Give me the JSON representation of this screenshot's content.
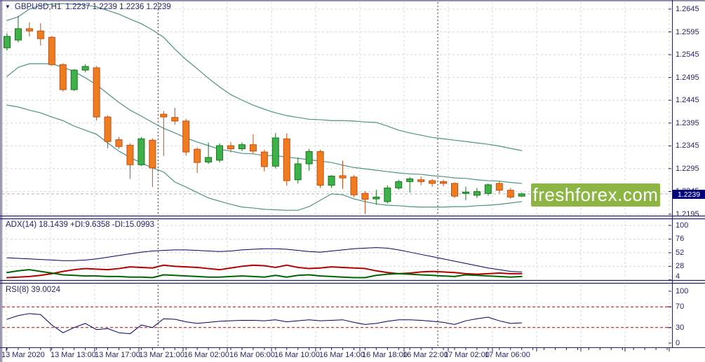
{
  "window": {
    "title": "GBPUSD,H1 chart"
  },
  "header": {
    "symbol_period": "GBPUSD,H1",
    "quotes": "1.2237 1.2239 1.2236 1.2239"
  },
  "logo": {
    "text": "freshforex.com",
    "bg": "#8cb544"
  },
  "price_axis": {
    "labels": [
      "1.2645",
      "1.2595",
      "1.2545",
      "1.2495",
      "1.2445",
      "1.2395",
      "1.2345",
      "1.2295",
      "1.2245",
      "1.2195"
    ],
    "current_price": "1.2239"
  },
  "adx_panel": {
    "label": "ADX(14) 18.1439 +DI:9.6358 -DI:15.0993",
    "scale_labels": [
      "100",
      "76",
      "52",
      "28",
      "4"
    ]
  },
  "rsi_panel": {
    "label": "RSI(8) 39.0024",
    "scale_labels": [
      "100",
      "70",
      "30",
      "0"
    ]
  },
  "time_axis": {
    "labels": [
      "13 Mar 2020",
      "13 Mar 13:00",
      "13 Mar 17:00",
      "13 Mar 21:00",
      "16 Mar 02:00",
      "16 Mar 06:00",
      "16 Mar 10:00",
      "16 Mar 14:00",
      "16 Mar 18:00",
      "16 Mar 22:00",
      "17 Mar 02:00",
      "17 Mar 06:00"
    ]
  },
  "colors": {
    "bull_fill": "#3fb04a",
    "bull_border": "#117a18",
    "bear_fill": "#ef7d1f",
    "bear_border": "#c84b10",
    "bollinger": "#4e9287",
    "adx_main": "#000066",
    "adx_plus_di": "#006400",
    "adx_minus_di": "#b30000",
    "rsi_line": "#000066",
    "rsi_level": "#c00000",
    "grid": "#d8d8d8",
    "separator": "#333333",
    "frame": "#20205e",
    "text": "#26266a",
    "price_line": "#b3b3b3",
    "badge_bg": "#00007d",
    "logo_bg": "#8cb544"
  },
  "chart_data": {
    "type": "candlestick",
    "symbol": "GBPUSD",
    "timeframe": "H1",
    "title": "GBPUSD,H1",
    "price_axis_range": {
      "top": 1.2645,
      "bottom": 1.2195,
      "grid_step": 0.005
    },
    "current_price": 1.2239,
    "candles_columns": [
      "open",
      "high",
      "low",
      "close"
    ],
    "candles": [
      [
        1.256,
        1.2592,
        1.2554,
        1.2585
      ],
      [
        1.2577,
        1.263,
        1.2572,
        1.2602
      ],
      [
        1.2602,
        1.2616,
        1.2585,
        1.2597
      ],
      [
        1.2597,
        1.2614,
        1.2565,
        1.258
      ],
      [
        1.2583,
        1.2586,
        1.252,
        1.2523
      ],
      [
        1.2523,
        1.2526,
        1.2464,
        1.2468
      ],
      [
        1.2468,
        1.2513,
        1.2465,
        1.2511
      ],
      [
        1.2511,
        1.2524,
        1.2506,
        1.2519
      ],
      [
        1.2516,
        1.252,
        1.24,
        1.2408
      ],
      [
        1.2408,
        1.2411,
        1.2339,
        1.2354
      ],
      [
        1.2358,
        1.2364,
        1.2338,
        1.2343
      ],
      [
        1.2346,
        1.235,
        1.2272,
        1.2303
      ],
      [
        1.2303,
        1.2364,
        1.23,
        1.236
      ],
      [
        1.2357,
        1.2361,
        1.2254,
        1.2296
      ],
      [
        1.2414,
        1.2421,
        1.2322,
        1.2408
      ],
      [
        1.2407,
        1.2428,
        1.2391,
        1.2399
      ],
      [
        1.2399,
        1.2404,
        1.2323,
        1.2331
      ],
      [
        1.2337,
        1.2341,
        1.2285,
        1.2308
      ],
      [
        1.2309,
        1.2352,
        1.2305,
        1.2319
      ],
      [
        1.2313,
        1.235,
        1.2308,
        1.2345
      ],
      [
        1.2345,
        1.2353,
        1.233,
        1.2338
      ],
      [
        1.2338,
        1.2352,
        1.2333,
        1.2347
      ],
      [
        1.2347,
        1.237,
        1.2328,
        1.2333
      ],
      [
        1.2331,
        1.2336,
        1.2288,
        1.2299
      ],
      [
        1.23,
        1.2373,
        1.2295,
        1.2362
      ],
      [
        1.236,
        1.2372,
        1.2257,
        1.2268
      ],
      [
        1.227,
        1.2319,
        1.2262,
        1.2305
      ],
      [
        1.2305,
        1.2338,
        1.229,
        1.2332
      ],
      [
        1.2332,
        1.2336,
        1.2252,
        1.2258
      ],
      [
        1.2258,
        1.228,
        1.2252,
        1.2278
      ],
      [
        1.2279,
        1.2312,
        1.225,
        1.2274
      ],
      [
        1.2276,
        1.228,
        1.2232,
        1.2237
      ],
      [
        1.224,
        1.2245,
        1.2195,
        1.2227
      ],
      [
        1.2228,
        1.2248,
        1.2215,
        1.2232
      ],
      [
        1.2222,
        1.2258,
        1.2218,
        1.2252
      ],
      [
        1.2252,
        1.227,
        1.2248,
        1.2266
      ],
      [
        1.2266,
        1.2276,
        1.2242,
        1.2272
      ],
      [
        1.227,
        1.2277,
        1.2258,
        1.2266
      ],
      [
        1.2268,
        1.2272,
        1.2255,
        1.2262
      ],
      [
        1.2266,
        1.227,
        1.2256,
        1.2262
      ],
      [
        1.2262,
        1.2264,
        1.223,
        1.2234
      ],
      [
        1.224,
        1.2255,
        1.2225,
        1.2243
      ],
      [
        1.2236,
        1.2252,
        1.223,
        1.2244
      ],
      [
        1.224,
        1.2262,
        1.2235,
        1.2259
      ],
      [
        1.2262,
        1.2268,
        1.224,
        1.2247
      ],
      [
        1.2247,
        1.2252,
        1.2228,
        1.2232
      ],
      [
        1.2234,
        1.2242,
        1.2232,
        1.2239
      ]
    ],
    "day_separators_at_index": [
      13.5,
      38.5
    ],
    "bollinger": {
      "period_note": "three band lines drawn over candles",
      "upper": [
        1.262,
        1.2628,
        1.2645,
        1.2653,
        1.2656,
        1.2657,
        1.2656,
        1.2654,
        1.265,
        1.2642,
        1.2634,
        1.2623,
        1.2613,
        1.2599,
        1.2583,
        1.2557,
        1.2534,
        1.2514,
        1.2493,
        1.2474,
        1.2457,
        1.2445,
        1.2434,
        1.2425,
        1.2417,
        1.2411,
        1.2407,
        1.2403,
        1.2402,
        1.24,
        1.24,
        1.2399,
        1.2397,
        1.2396,
        1.2388,
        1.2379,
        1.2373,
        1.2368,
        1.2363,
        1.236,
        1.2357,
        1.2354,
        1.2351,
        1.2348,
        1.2344,
        1.2339,
        1.2334
      ],
      "middle": [
        1.2497,
        1.2517,
        1.2525,
        1.2525,
        1.2525,
        1.2517,
        1.2508,
        1.2494,
        1.2479,
        1.2459,
        1.244,
        1.2423,
        1.241,
        1.2396,
        1.2383,
        1.2373,
        1.2362,
        1.2353,
        1.2345,
        1.2337,
        1.2333,
        1.2328,
        1.2327,
        1.2323,
        1.2323,
        1.232,
        1.2317,
        1.2314,
        1.2311,
        1.2308,
        1.2302,
        1.2297,
        1.2294,
        1.2291,
        1.2288,
        1.2285,
        1.2283,
        1.2282,
        1.2279,
        1.2277,
        1.2274,
        1.2273,
        1.227,
        1.2268,
        1.2267,
        1.2264,
        1.2262
      ],
      "lower": [
        1.2434,
        1.243,
        1.2423,
        1.2417,
        1.2408,
        1.24,
        1.2388,
        1.2379,
        1.237,
        1.2351,
        1.2333,
        1.2319,
        1.2307,
        1.2296,
        1.2287,
        1.2265,
        1.2254,
        1.2242,
        1.223,
        1.2223,
        1.2216,
        1.221,
        1.2208,
        1.2205,
        1.2204,
        1.2203,
        1.2203,
        1.2211,
        1.2225,
        1.2239,
        1.2237,
        1.2228,
        1.2222,
        1.2217,
        1.2214,
        1.2213,
        1.2211,
        1.221,
        1.221,
        1.221,
        1.2211,
        1.2211,
        1.2213,
        1.2214,
        1.2216,
        1.2219,
        1.2222
      ]
    },
    "adx": {
      "name": "ADX",
      "period": 14,
      "value": 18.1439,
      "plus_di_value": 9.6358,
      "minus_di_value": 15.0993,
      "scale_ticks": [
        100,
        76,
        52,
        28,
        4
      ],
      "main": [
        43,
        42,
        41,
        40,
        39,
        38,
        38,
        39,
        41,
        44,
        47,
        50,
        53,
        55,
        56,
        57,
        57,
        56,
        55,
        54,
        55,
        57,
        58,
        59,
        59,
        58,
        56,
        54,
        53,
        55,
        57,
        59,
        60,
        61,
        60,
        57,
        53,
        49,
        45,
        41,
        37,
        33,
        29,
        25,
        22,
        19,
        18
      ],
      "plus_di": [
        17,
        20,
        22,
        19,
        16,
        13,
        12,
        11,
        11,
        10,
        10,
        9,
        9,
        8,
        13,
        12,
        11,
        10,
        9,
        9,
        10,
        11,
        10,
        9,
        12,
        9,
        12,
        13,
        11,
        10,
        9,
        8,
        8,
        12,
        14,
        15,
        14,
        13,
        12,
        11,
        10,
        13,
        12,
        11,
        10,
        9,
        10
      ],
      "minus_di": [
        8,
        9,
        10,
        12,
        15,
        19,
        22,
        24,
        23,
        22,
        24,
        27,
        26,
        25,
        30,
        28,
        27,
        26,
        24,
        22,
        25,
        28,
        30,
        29,
        26,
        30,
        26,
        24,
        25,
        27,
        26,
        25,
        24,
        20,
        17,
        15,
        16,
        18,
        19,
        18,
        17,
        15,
        14,
        15,
        16,
        15,
        15
      ]
    },
    "rsi": {
      "name": "RSI",
      "period": 8,
      "value": 39.0024,
      "scale_ticks": [
        100,
        70,
        30,
        0
      ],
      "levels": [
        70,
        30
      ],
      "series": [
        46,
        53,
        57,
        55,
        35,
        20,
        30,
        38,
        26,
        28,
        20,
        18,
        35,
        30,
        47,
        46,
        41,
        38,
        40,
        42,
        43,
        44,
        44,
        43,
        45,
        41,
        43,
        45,
        43,
        44,
        45,
        40,
        36,
        38,
        42,
        45,
        45,
        44,
        42,
        40,
        36,
        43,
        47,
        50,
        43,
        38,
        39
      ]
    }
  }
}
